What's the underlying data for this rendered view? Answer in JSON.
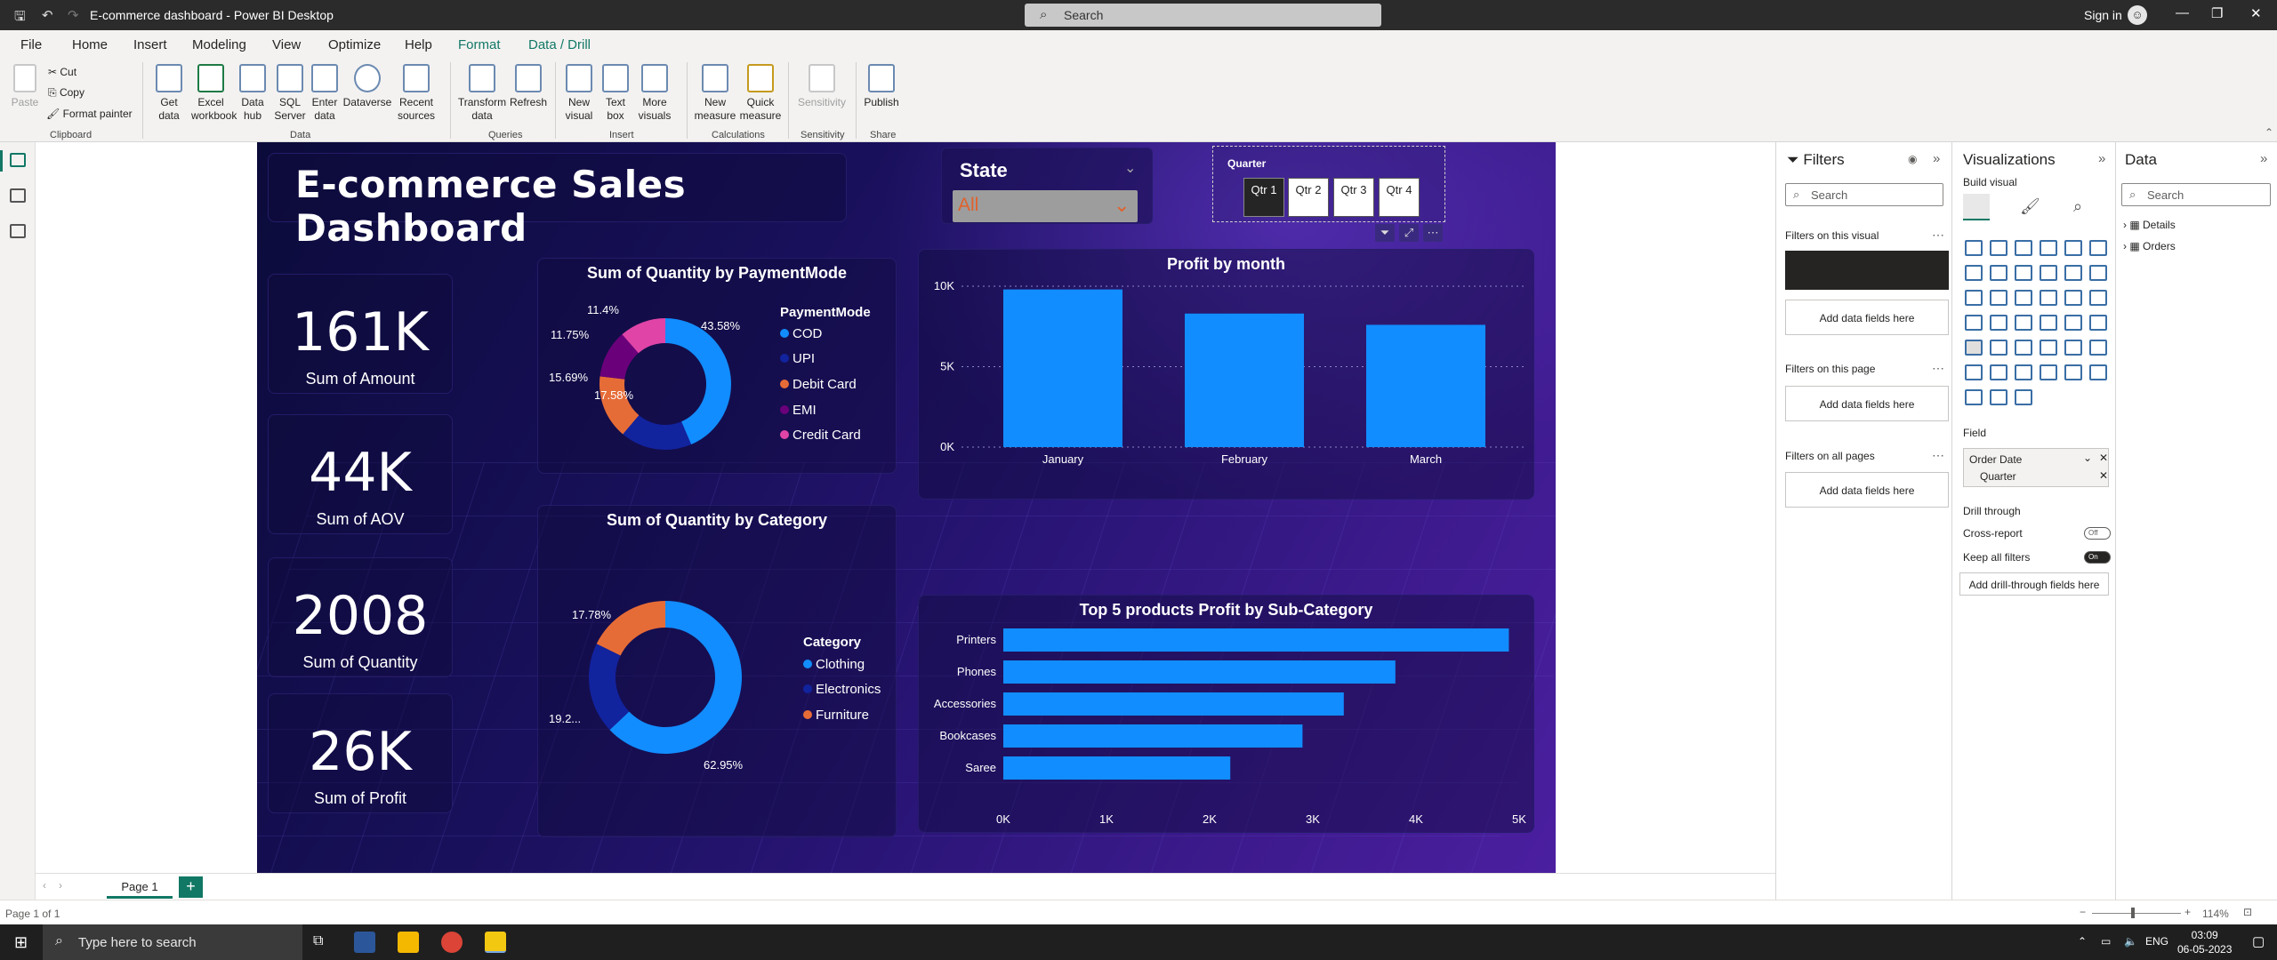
{
  "window": {
    "title": "E-commerce dashboard - Power BI Desktop",
    "search_placeholder": "Search",
    "sign_in": "Sign in"
  },
  "menu": {
    "tabs": [
      "File",
      "Home",
      "Insert",
      "Modeling",
      "View",
      "Optimize",
      "Help",
      "Format",
      "Data / Drill"
    ],
    "active": "Home"
  },
  "ribbon": {
    "clipboard": {
      "paste": "Paste",
      "cut": "Cut",
      "copy": "Copy",
      "format_painter": "Format painter",
      "group": "Clipboard"
    },
    "data": {
      "get_data": "Get data",
      "excel": "Excel workbook",
      "data_hub": "Data hub",
      "sql": "SQL Server",
      "enter": "Enter data",
      "dataverse": "Dataverse",
      "recent": "Recent sources",
      "group": "Data"
    },
    "queries": {
      "transform": "Transform data",
      "refresh": "Refresh",
      "group": "Queries"
    },
    "insert": {
      "new_visual": "New visual",
      "text_box": "Text box",
      "more_visuals": "More visuals",
      "group": "Insert"
    },
    "calculations": {
      "new_measure": "New measure",
      "quick_measure": "Quick measure",
      "group": "Calculations"
    },
    "sensitivity": {
      "label": "Sensitivity",
      "group": "Sensitivity"
    },
    "share": {
      "publish": "Publish",
      "group": "Share"
    }
  },
  "report": {
    "title": "E-commerce Sales Dashboard",
    "state_slicer": {
      "label": "State",
      "value": "All"
    },
    "quarter_slicer": {
      "label": "Quarter",
      "items": [
        "Qtr 1",
        "Qtr 2",
        "Qtr 3",
        "Qtr 4"
      ],
      "selected": "Qtr 1"
    },
    "kpis": [
      {
        "value": "161K",
        "label": "Sum of Amount"
      },
      {
        "value": "44K",
        "label": "Sum of AOV"
      },
      {
        "value": "2008",
        "label": "Sum of Quantity"
      },
      {
        "value": "26K",
        "label": "Sum of Profit"
      }
    ]
  },
  "chart_data": [
    {
      "type": "pie",
      "title": "Sum of Quantity by PaymentMode",
      "legend_title": "PaymentMode",
      "legend": "right",
      "categories": [
        "COD",
        "UPI",
        "Debit Card",
        "EMI",
        "Credit Card"
      ],
      "values": [
        43.58,
        17.58,
        15.69,
        11.75,
        11.4
      ],
      "labels": [
        "43.58%",
        "17.58%",
        "15.69%",
        "11.75%",
        "11.4%"
      ],
      "colors": [
        "#118dff",
        "#12239e",
        "#e66c37",
        "#6b007b",
        "#e044a7"
      ]
    },
    {
      "type": "pie",
      "title": "Sum of Quantity by Category",
      "legend_title": "Category",
      "legend": "right",
      "categories": [
        "Clothing",
        "Electronics",
        "Furniture"
      ],
      "values": [
        62.95,
        19.27,
        17.78
      ],
      "labels": [
        "62.95%",
        "19.2...",
        "17.78%"
      ],
      "colors": [
        "#118dff",
        "#12239e",
        "#e66c37"
      ]
    },
    {
      "type": "bar",
      "title": "Profit by month",
      "categories": [
        "January",
        "February",
        "March"
      ],
      "values": [
        9800,
        8300,
        7600
      ],
      "ylim": [
        0,
        10000
      ],
      "yticks": [
        "0K",
        "5K",
        "10K"
      ],
      "grid": true,
      "color": "#118dff"
    },
    {
      "type": "bar",
      "orientation": "horizontal",
      "title": "Top 5 products Profit by Sub-Category",
      "categories": [
        "Printers",
        "Phones",
        "Accessories",
        "Bookcases",
        "Saree"
      ],
      "values": [
        4900,
        3800,
        3300,
        2900,
        2200
      ],
      "xlim": [
        0,
        5000
      ],
      "xticks": [
        "0K",
        "1K",
        "2K",
        "3K",
        "4K",
        "5K"
      ],
      "color": "#118dff"
    }
  ],
  "pages": {
    "tab": "Page 1",
    "status": "Page 1 of 1",
    "zoom": "114%"
  },
  "filters": {
    "title": "Filters",
    "search": "Search",
    "on_visual": "Filters on this visual",
    "on_page": "Filters on this page",
    "on_all": "Filters on all pages",
    "add": "Add data fields here"
  },
  "visualizations": {
    "title": "Visualizations",
    "build": "Build visual",
    "field": "Field",
    "field_items": [
      "Order Date",
      "Quarter"
    ],
    "drill": "Drill through",
    "cross_report": "Cross-report",
    "cross_state": "Off",
    "keep_filters": "Keep all filters",
    "keep_state": "On",
    "add_drill": "Add drill-through fields here"
  },
  "data_pane": {
    "title": "Data",
    "search": "Search",
    "tables": [
      "Details",
      "Orders"
    ]
  },
  "taskbar": {
    "search": "Type here to search",
    "lang": "ENG",
    "time": "03:09",
    "date": "06-05-2023"
  }
}
